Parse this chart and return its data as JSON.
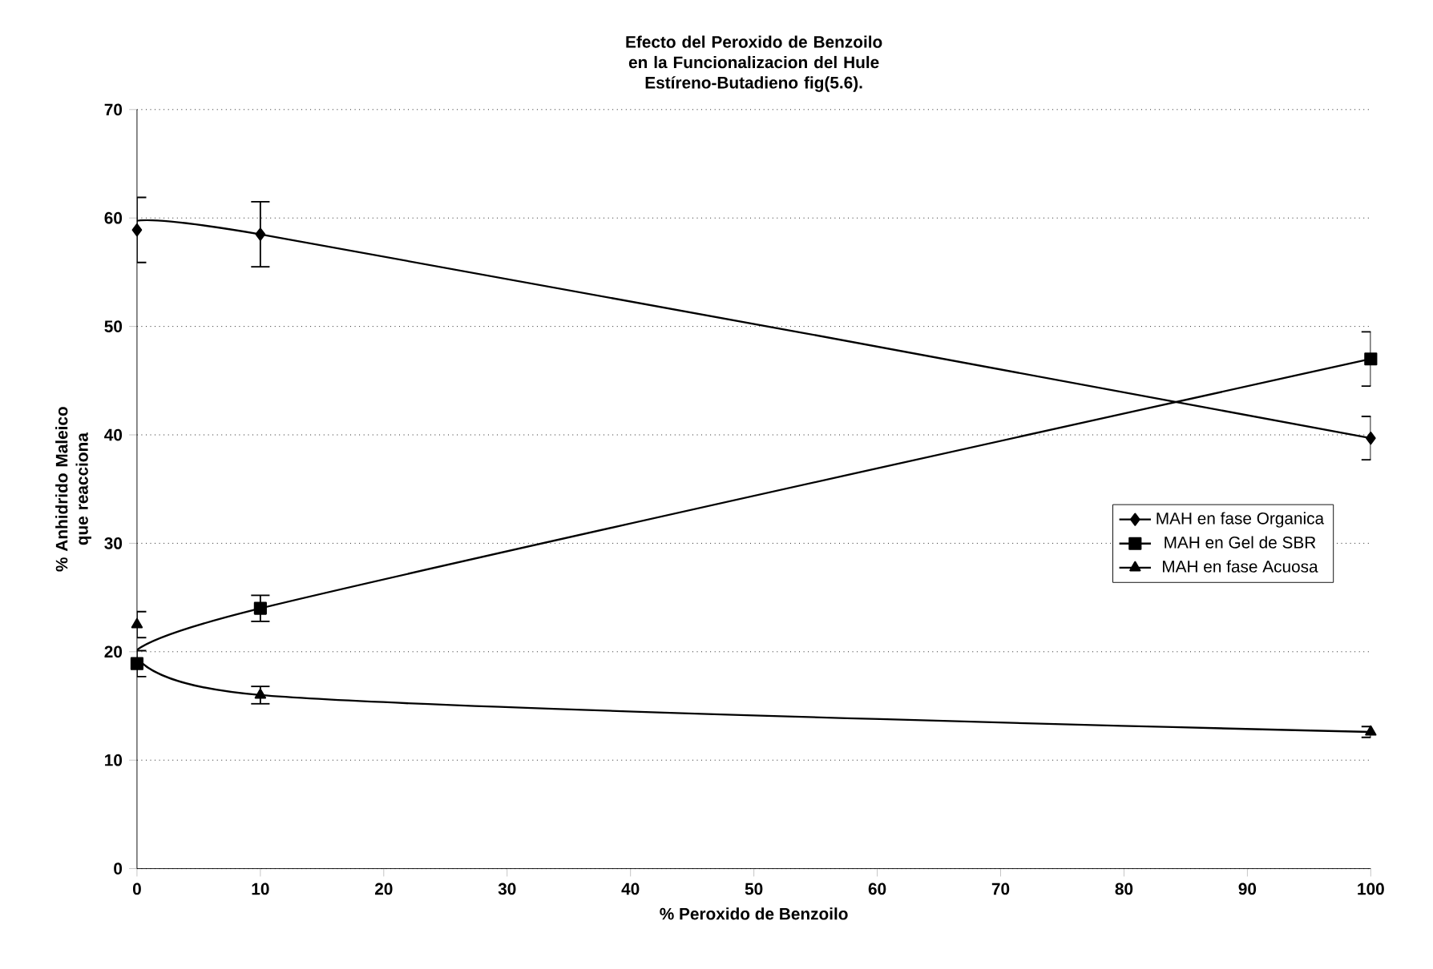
{
  "chart_data": {
    "type": "line",
    "title": "Efecto del Peroxido de Benzoilo en la Funcionalizacion del Hule Estíreno-Butadieno fig(5.6).",
    "xlabel": "% Peroxido de Benzoilo",
    "ylabel": "% Anhidrido Maleico que reacciona",
    "x": [
      0,
      10,
      100
    ],
    "series": [
      {
        "name": "MAH en fase Organica",
        "color": "#000000",
        "marker": "diamond",
        "values": [
          58.9,
          58.5,
          39.7
        ],
        "errors": [
          3,
          3,
          2
        ]
      },
      {
        "name": "MAH en Gel de SBR",
        "color": "#000000",
        "marker": "square",
        "values": [
          18.9,
          24.0,
          47
        ],
        "errors": [
          1.2,
          1.2,
          2.5
        ]
      },
      {
        "name": "MAH en fase Acuosa",
        "color": "#000000",
        "marker": "triangle",
        "values": [
          22.5,
          16.0,
          12.6
        ],
        "errors": [
          1.2,
          0.8,
          0.5
        ]
      }
    ],
    "xlim": [
      0,
      100
    ],
    "xticks": [
      0,
      10,
      20,
      30,
      40,
      50,
      60,
      70,
      80,
      90,
      100
    ],
    "ylim": [
      0,
      70
    ],
    "yticks": [
      0,
      10,
      20,
      30,
      40,
      50,
      60,
      70
    ],
    "grid": "y",
    "legend": "right",
    "line_style": "solid"
  }
}
